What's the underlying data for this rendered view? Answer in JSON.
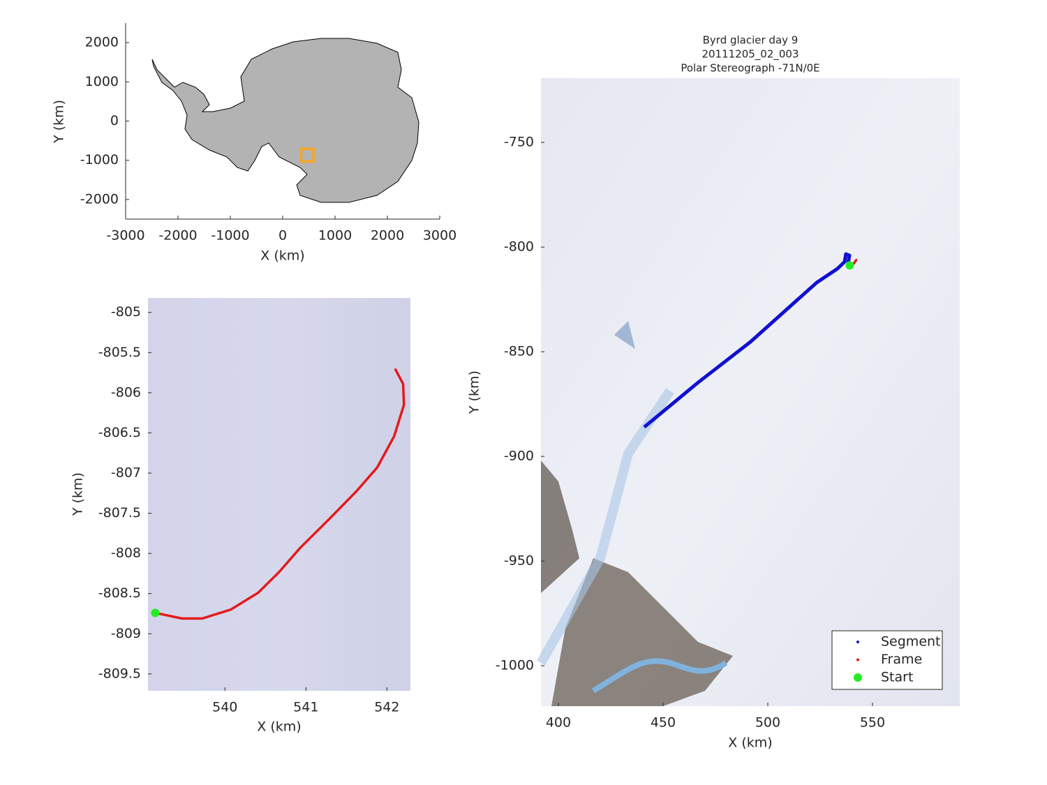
{
  "chart_data": [
    {
      "type": "map",
      "xlabel": "X (km)",
      "ylabel": "Y (km)",
      "xlim": [
        -3000,
        3000
      ],
      "ylim": [
        -2500,
        2500
      ],
      "xticks": [
        -3000,
        -2000,
        -1000,
        0,
        1000,
        2000,
        3000
      ],
      "yticks": [
        -2000,
        -1000,
        0,
        1000,
        2000
      ],
      "series": [
        {
          "color": "#f0a830",
          "style": "square",
          "x": [
            470
          ],
          "y": [
            -870
          ]
        }
      ]
    },
    {
      "type": "line",
      "xlabel": "X (km)",
      "ylabel": "Y (km)",
      "xlim": [
        539.05,
        542.29
      ],
      "ylim": [
        -809.71,
        -804.82
      ],
      "xticks": [
        540,
        541,
        542
      ],
      "yticks": [
        -805,
        -805.5,
        -806,
        -806.5,
        -807,
        -807.5,
        -808,
        -808.5,
        -809,
        -809.5
      ],
      "series": [
        {
          "color": "#e31a1c",
          "style": "line",
          "x": [
            539.14,
            539.47,
            539.72,
            540.07,
            540.41,
            540.67,
            540.93,
            541.28,
            541.62,
            541.88,
            542.09,
            542.21,
            542.2,
            542.1
          ],
          "y": [
            -808.74,
            -808.81,
            -808.81,
            -808.7,
            -808.49,
            -808.23,
            -807.93,
            -807.58,
            -807.23,
            -806.93,
            -806.54,
            -806.15,
            -805.89,
            -805.7
          ]
        },
        {
          "color": "#22ee22",
          "style": "start",
          "x": [
            539.14
          ],
          "y": [
            -808.74
          ]
        }
      ]
    },
    {
      "type": "map-image",
      "title": [
        "Byrd glacier day 9",
        "20111205_02_003",
        "Polar Stereograph -71N/0E"
      ],
      "xlabel": "X (km)",
      "ylabel": "Y (km)",
      "xlim": [
        391.67,
        591.67
      ],
      "ylim": [
        -1019.3,
        -719.3
      ],
      "xticks": [
        400,
        450,
        500,
        550
      ],
      "yticks": [
        -1000,
        -950,
        -900,
        -850,
        -800,
        -750
      ],
      "legend": "southeast",
      "series": [
        {
          "name": "Segment",
          "color": "#1010d0",
          "style": "line",
          "x": [
            441,
            466.7,
            491.7,
            523.3,
            533.3,
            536.7,
            537.3,
            539,
            538.3
          ],
          "y": [
            -886,
            -864.7,
            -845.3,
            -817,
            -810.3,
            -807,
            -803.3,
            -804,
            -808
          ]
        },
        {
          "name": "Frame",
          "color": "#e31a1c",
          "style": "line",
          "x": [
            539.14,
            540.07,
            541.28,
            542.21,
            542.1
          ],
          "y": [
            -808.74,
            -808.7,
            -807.58,
            -806.15,
            -805.7
          ]
        },
        {
          "name": "Start",
          "color": "#22ee22",
          "style": "start",
          "x": [
            539.14
          ],
          "y": [
            -808.74
          ]
        }
      ]
    }
  ]
}
